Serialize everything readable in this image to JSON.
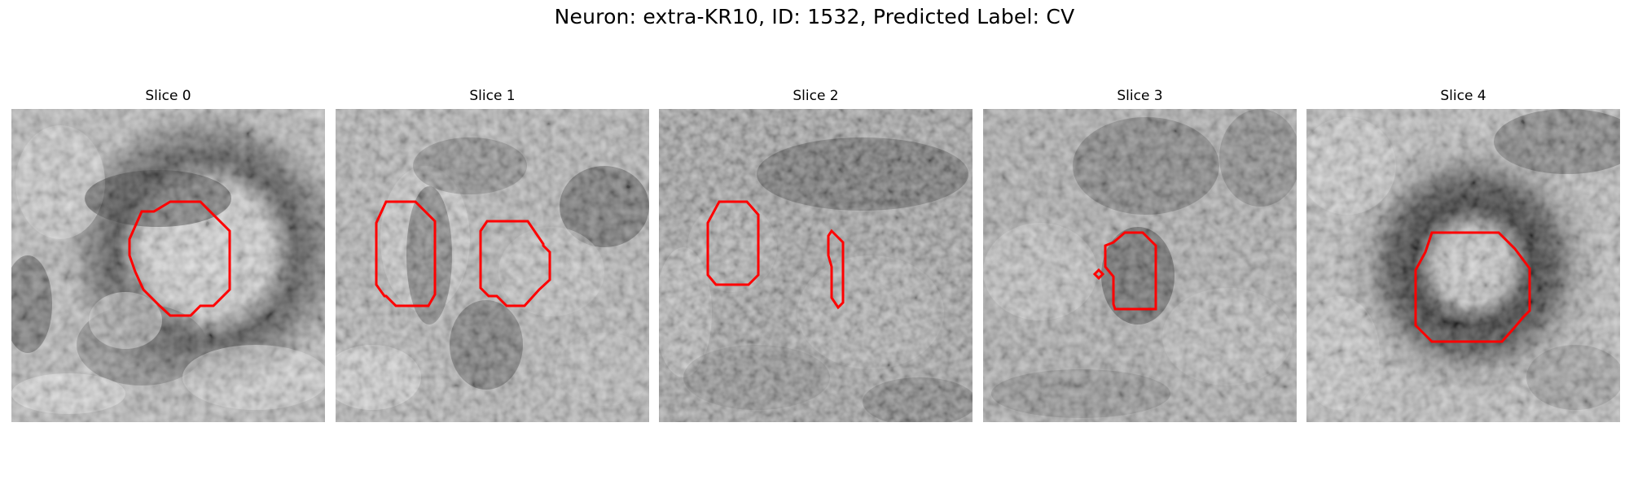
{
  "figure": {
    "title": "Neuron: extra-KR10, ID: 1532, Predicted Label: CV"
  },
  "colors": {
    "contour": "#ff0000",
    "background": "#ffffff",
    "colormap": "grayscale"
  },
  "panels": [
    {
      "title": "Slice 0"
    },
    {
      "title": "Slice 1"
    },
    {
      "title": "Slice 2"
    },
    {
      "title": "Slice 3"
    },
    {
      "title": "Slice 4"
    }
  ]
}
